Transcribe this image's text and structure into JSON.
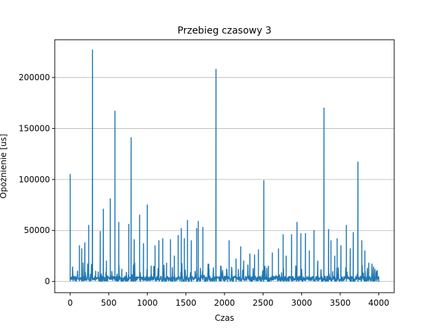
{
  "chart_data": {
    "type": "line",
    "title": "Przebieg czasowy 3",
    "xlabel": "Czas",
    "ylabel": "Opóźnienie [us]",
    "xlim": [
      -200,
      4200
    ],
    "ylim": [
      -11000,
      237000
    ],
    "xticks": [
      0,
      500,
      1000,
      1500,
      2000,
      2500,
      3000,
      3500,
      4000
    ],
    "xtick_labels": [
      "0",
      "500",
      "1000",
      "1500",
      "2000",
      "2500",
      "3000",
      "3500",
      "4000"
    ],
    "yticks": [
      0,
      50000,
      100000,
      150000,
      200000
    ],
    "ytick_labels": [
      "0",
      "50000",
      "100000",
      "150000",
      "200000"
    ],
    "grid": "horizontal",
    "series_color": "#1f77b4",
    "baseline_band": [
      0,
      7000
    ],
    "x_range": [
      0,
      4000
    ],
    "spikes": [
      [
        0,
        105000
      ],
      [
        120,
        35000
      ],
      [
        150,
        32000
      ],
      [
        190,
        38000
      ],
      [
        240,
        55000
      ],
      [
        290,
        227000
      ],
      [
        330,
        10000
      ],
      [
        390,
        49000
      ],
      [
        430,
        71000
      ],
      [
        470,
        20000
      ],
      [
        520,
        81000
      ],
      [
        580,
        167000
      ],
      [
        630,
        58000
      ],
      [
        670,
        12000
      ],
      [
        760,
        56000
      ],
      [
        790,
        141000
      ],
      [
        830,
        41000
      ],
      [
        900,
        65000
      ],
      [
        950,
        37000
      ],
      [
        1000,
        75000
      ],
      [
        1050,
        15000
      ],
      [
        1100,
        35000
      ],
      [
        1150,
        40000
      ],
      [
        1200,
        42000
      ],
      [
        1250,
        18000
      ],
      [
        1300,
        41000
      ],
      [
        1350,
        25000
      ],
      [
        1400,
        45000
      ],
      [
        1440,
        52000
      ],
      [
        1480,
        42000
      ],
      [
        1520,
        60000
      ],
      [
        1570,
        40000
      ],
      [
        1640,
        52000
      ],
      [
        1660,
        59000
      ],
      [
        1720,
        53000
      ],
      [
        1800,
        12000
      ],
      [
        1890,
        208000
      ],
      [
        1950,
        15000
      ],
      [
        2060,
        40000
      ],
      [
        2150,
        22000
      ],
      [
        2210,
        34000
      ],
      [
        2250,
        20000
      ],
      [
        2330,
        27000
      ],
      [
        2390,
        26000
      ],
      [
        2440,
        31000
      ],
      [
        2510,
        99000
      ],
      [
        2570,
        15000
      ],
      [
        2620,
        28000
      ],
      [
        2700,
        32000
      ],
      [
        2760,
        46000
      ],
      [
        2800,
        25000
      ],
      [
        2870,
        46000
      ],
      [
        2940,
        58000
      ],
      [
        2990,
        47000
      ],
      [
        3050,
        47000
      ],
      [
        3100,
        30000
      ],
      [
        3160,
        50000
      ],
      [
        3210,
        20000
      ],
      [
        3290,
        170000
      ],
      [
        3350,
        51000
      ],
      [
        3380,
        40000
      ],
      [
        3430,
        25000
      ],
      [
        3460,
        42000
      ],
      [
        3510,
        35000
      ],
      [
        3580,
        55000
      ],
      [
        3630,
        32000
      ],
      [
        3670,
        48000
      ],
      [
        3730,
        117000
      ],
      [
        3780,
        40000
      ],
      [
        3820,
        30000
      ],
      [
        3870,
        18000
      ],
      [
        3950,
        12000
      ],
      [
        4000,
        0
      ]
    ]
  }
}
